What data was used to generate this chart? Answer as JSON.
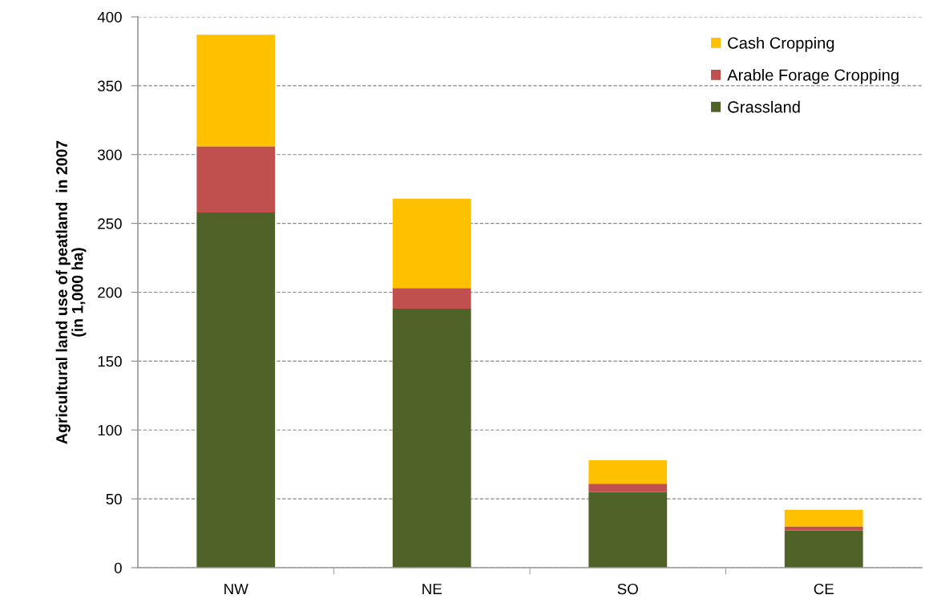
{
  "chart_data": {
    "type": "bar",
    "stacked": true,
    "ylabel": "Agricultural land use of peatland  in 2007\n(in 1,000 ha)",
    "categories": [
      "NW",
      "NE",
      "SO",
      "CE"
    ],
    "series": [
      {
        "name": "Grassland",
        "color": "#4f6228",
        "values": [
          258,
          188,
          55,
          27
        ]
      },
      {
        "name": "Arable Forage Cropping",
        "color": "#c0504d",
        "values": [
          48,
          15,
          6,
          3
        ]
      },
      {
        "name": "Cash Cropping",
        "color": "#ffc000",
        "values": [
          81,
          65,
          17,
          12
        ]
      }
    ],
    "ylim": [
      0,
      400
    ],
    "yticks": [
      0,
      50,
      100,
      150,
      200,
      250,
      300,
      350,
      400
    ],
    "grid": "y",
    "legend": "top right"
  }
}
